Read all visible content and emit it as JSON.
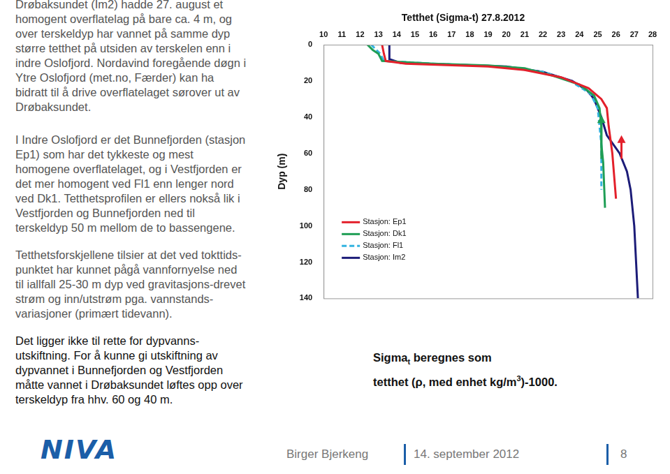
{
  "slide": {
    "paragraphs": [
      {
        "lines": [
          "Drøbaksundet (Im2) hadde 27. august et",
          "homogent overflatelag på bare ca. 4 m, og",
          "over terskeldyp har vannet på samme dyp",
          "større tetthet på utsiden av terskelen enn i",
          "indre Oslofjord. Nordavind foregående døgn i",
          "Ytre Oslofjord (met.no, Færder) kan ha",
          "bidratt til å drive overflatelaget sørover ut av",
          "Drøbaksundet."
        ]
      },
      {
        "lines": [
          "I Indre Oslofjord er det Bunnefjorden (stasjon",
          "Ep1) som har det tykkeste og mest",
          "homogene overflatelaget, og i Vestfjorden er",
          "det mer homogent ved Fl1 enn lenger nord",
          "ved Dk1. Tetthetsprofilen er ellers nokså lik i",
          "Vestfjorden og Bunnefjorden ned til",
          "terskeldyp 50 m mellom de to bassengene."
        ]
      },
      {
        "lines": [
          "Tetthetsforskjellene tilsier at det ved tokttids-",
          "punktet har kunnet pågå vannfornyelse ned",
          "til iallfall 25-30 m dyp ved gravitasjons-drevet",
          "strøm og inn/utstrøm pga. vannstands-",
          "variasjoner (primært tidevann)."
        ]
      },
      {
        "lines": [
          "Det ligger ikke til rette for dypvanns-",
          "utskiftning. For å kunne gi utskiftning av",
          "dypvannet i Bunnefjorden og Vestfjorden",
          "måtte vannet i Drøbaksundet løftes opp over",
          "terskeldyp fra hhv. 60 og 40 m."
        ]
      }
    ],
    "note": [
      {
        "text": "Sigma",
        "sub": "t",
        "after": " beregnes som"
      },
      {
        "text": "tetthet (ρ, med enhet kg/m",
        "sup": "3",
        "after": ")-1000."
      }
    ],
    "logo": "NIVA",
    "author": "Birger Bjerkeng",
    "date": "14. september 2012",
    "page": "8"
  },
  "chart_data": {
    "type": "line",
    "title": "Tetthet (Sigma-t) 27.8.2012",
    "y_label": "Dyp (m)",
    "xlim": [
      10,
      28
    ],
    "xticks": [
      10,
      11,
      12,
      13,
      14,
      15,
      16,
      17,
      18,
      19,
      20,
      21,
      22,
      23,
      24,
      25,
      26,
      27,
      28
    ],
    "ylim": [
      0,
      140
    ],
    "yticks": [
      0,
      20,
      40,
      60,
      80,
      100,
      120,
      140
    ],
    "grid": false,
    "legend": "lower left",
    "series": [
      {
        "name": "Stasjon: Ep1",
        "color": "#e3202b",
        "line_style": "solid",
        "x": [
          13.2,
          13.3,
          13.4,
          14.5,
          19.0,
          21.0,
          23.0,
          24.5,
          25.2,
          25.5,
          25.6,
          25.8,
          26.0
        ],
        "y": [
          0,
          5,
          9,
          10.5,
          12,
          14,
          18,
          24,
          30,
          35,
          45,
          60,
          85
        ]
      },
      {
        "name": "Stasjon: Dk1",
        "color": "#1f9e55",
        "line_style": "solid",
        "x": [
          12.4,
          12.7,
          13.0,
          13.2,
          16.0,
          19.0,
          21.0,
          22.5,
          24.0,
          24.8,
          25.1,
          25.2,
          25.2,
          25.3,
          25.4
        ],
        "y": [
          0,
          3,
          5,
          9,
          10.5,
          11.5,
          13,
          17,
          22,
          28,
          35,
          45,
          55,
          65,
          90
        ]
      },
      {
        "name": "Stasjon: Fl1",
        "color": "#33b3e0",
        "line_style": "dashed",
        "x": [
          12.6,
          13.1,
          13.3,
          16.0,
          19.5,
          22.0,
          23.5,
          24.6,
          25.0,
          25.1,
          25.2,
          25.2
        ],
        "y": [
          0,
          5,
          9,
          10.5,
          12,
          15,
          20,
          27,
          35,
          45,
          55,
          80
        ]
      },
      {
        "name": "Stasjon: Im2",
        "color": "#1c1c78",
        "line_style": "solid",
        "x": [
          13.6,
          13.6,
          14.2,
          17.0,
          20.0,
          22.0,
          23.6,
          24.4,
          24.8,
          25.2,
          25.5,
          26.2,
          26.6,
          26.8,
          27.0,
          27.1,
          27.2
        ],
        "y": [
          0,
          8,
          10,
          11,
          12,
          15,
          20,
          25,
          30,
          40,
          50,
          60,
          70,
          80,
          100,
          120,
          140
        ]
      }
    ],
    "arrows": [
      {
        "color": "#e3202b",
        "x": 26.3,
        "from": 63,
        "to": 50
      },
      {
        "color": "#1f9e55",
        "x": 25.2,
        "from": 63,
        "to": 39
      }
    ]
  }
}
